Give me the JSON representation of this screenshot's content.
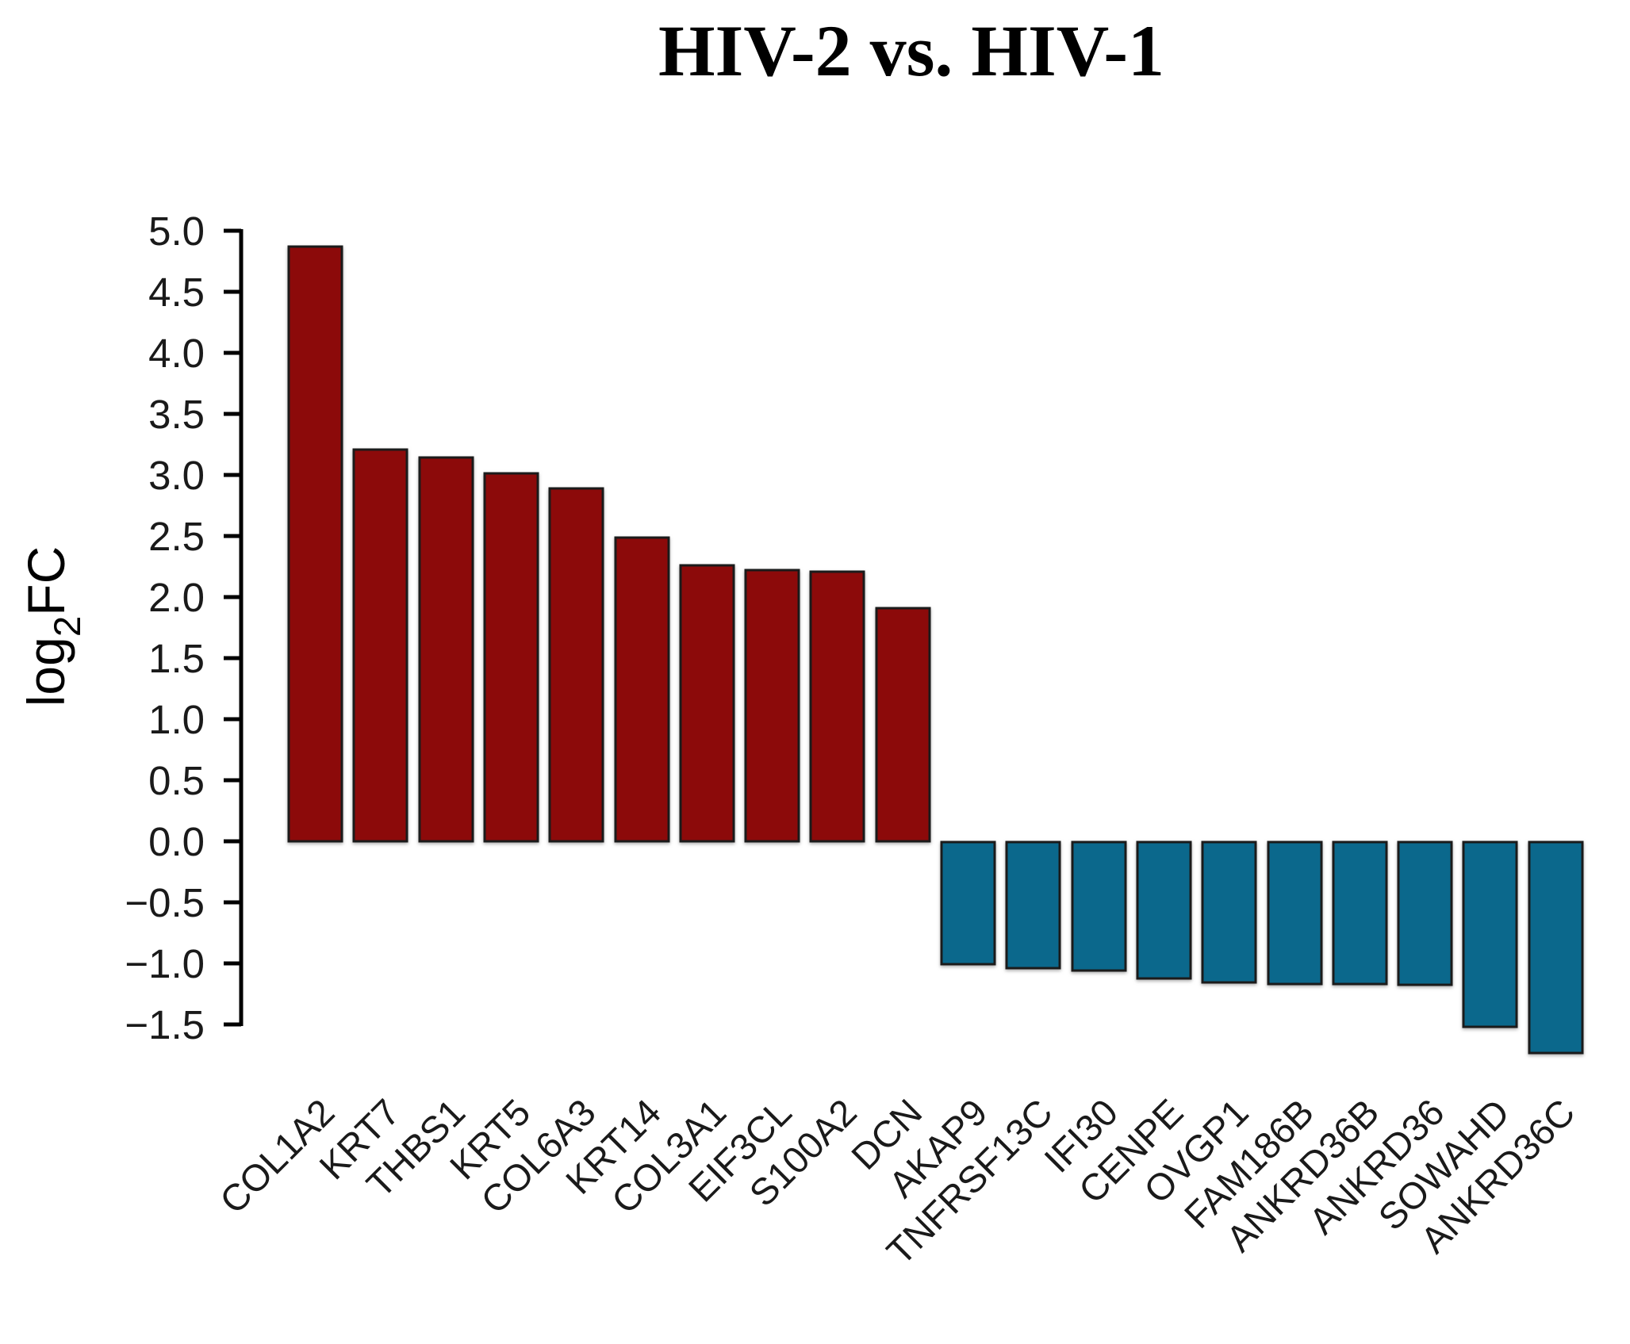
{
  "chart_data": {
    "type": "bar",
    "title": "HIV-2 vs. HIV-1",
    "ylabel": "log2FC",
    "ylabel_parts": {
      "prefix": "log",
      "sub": "2",
      "suffix": "FC"
    },
    "xlabel": "",
    "categories": [
      "COL1A2",
      "KRT7",
      "THBS1",
      "KRT5",
      "COL6A3",
      "KRT14",
      "COL3A1",
      "EIF3CL",
      "S100A2",
      "DCN",
      "AKAP9",
      "TNFRSF13C",
      "IFI30",
      "CENPE",
      "OVGP1",
      "FAM186B",
      "ANKRD36B",
      "ANKRD36",
      "SOWAHD",
      "ANKRD36C"
    ],
    "values": [
      4.87,
      3.21,
      3.14,
      3.01,
      2.89,
      2.49,
      2.26,
      2.22,
      2.21,
      1.91,
      -1.0,
      -1.03,
      -1.05,
      -1.12,
      -1.15,
      -1.16,
      -1.16,
      -1.17,
      -1.51,
      -1.73
    ],
    "ylim": [
      -1.5,
      5.0
    ],
    "yticks": [
      5.0,
      4.5,
      4.0,
      3.5,
      3.0,
      2.5,
      2.0,
      1.5,
      1.0,
      0.5,
      0.0,
      -0.5,
      -1.0,
      -1.5
    ],
    "ytick_labels": [
      "5.0",
      "4.5",
      "4.0",
      "3.5",
      "3.0",
      "2.5",
      "2.0",
      "1.5",
      "1.0",
      "0.5",
      "0.0",
      "−0.5",
      "−1.0",
      "−1.5"
    ],
    "grid": false,
    "legend": null,
    "colors": {
      "positive_bar": "#8C0A0A",
      "negative_bar": "#0B688C",
      "bar_outline": "#1B1B1B",
      "axis": "#000000",
      "background": "#FFFFFF"
    },
    "x_label_rotation_deg": 45
  }
}
